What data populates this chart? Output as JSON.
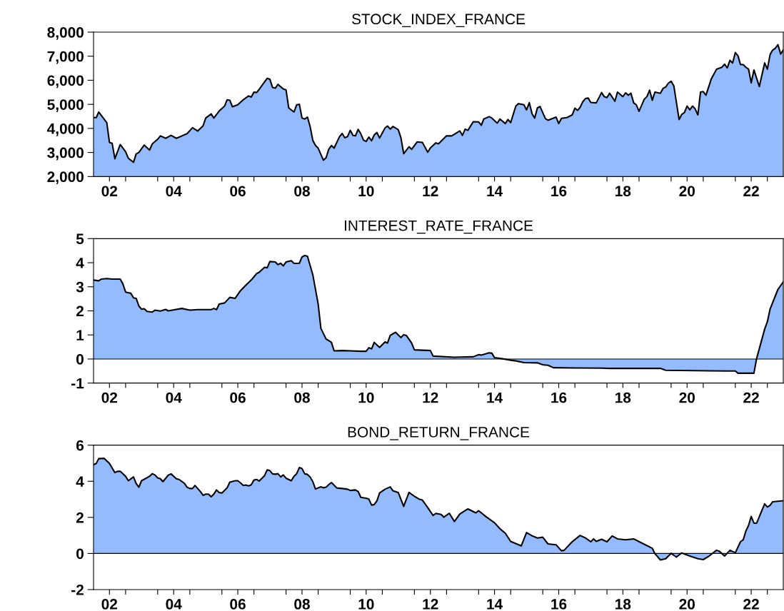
{
  "chart_data": [
    {
      "type": "area",
      "title": "STOCK_INDEX_FRANCE",
      "color": "#94bbfd",
      "x": [
        "2002-01",
        "2002-02",
        "2002-03",
        "2002-06",
        "2002-07",
        "2002-08",
        "2002-09",
        "2002-11",
        "2003-01",
        "2003-02",
        "2003-04",
        "2003-05",
        "2003-06",
        "2003-08",
        "2003-10",
        "2003-11",
        "2004-01",
        "2004-02",
        "2004-04",
        "2004-06",
        "2004-08",
        "2004-12",
        "2005-02",
        "2005-04",
        "2005-06",
        "2005-07",
        "2005-09",
        "2005-10",
        "2005-12",
        "2006-02",
        "2006-03",
        "2006-04",
        "2006-05",
        "2006-07",
        "2006-09",
        "2006-11",
        "2006-12",
        "2007-01",
        "2007-02",
        "2007-03",
        "2007-05",
        "2007-06",
        "2007-07",
        "2007-08",
        "2007-09",
        "2007-10",
        "2007-12",
        "2008-01",
        "2008-02",
        "2008-04",
        "2008-05",
        "2008-06",
        "2008-07",
        "2008-08",
        "2008-09",
        "2008-10",
        "2008-11",
        "2008-12",
        "2009-01",
        "2009-03",
        "2009-04",
        "2009-05",
        "2009-06",
        "2009-07",
        "2009-09",
        "2009-10",
        "2009-11",
        "2009-12",
        "2010-01",
        "2010-02",
        "2010-03",
        "2010-04",
        "2010-05",
        "2010-06",
        "2010-07",
        "2010-08",
        "2010-09",
        "2010-10",
        "2010-11",
        "2010-12",
        "2011-02",
        "2011-03",
        "2011-04",
        "2011-05",
        "2011-07",
        "2011-08",
        "2011-09",
        "2011-11",
        "2011-12",
        "2012-02",
        "2012-04",
        "2012-06",
        "2012-07",
        "2012-09",
        "2012-10",
        "2013-01",
        "2013-03",
        "2013-06",
        "2013-07",
        "2013-08",
        "2013-09",
        "2013-11",
        "2014-01",
        "2014-02",
        "2014-03",
        "2014-05",
        "2014-06",
        "2014-08",
        "2014-09",
        "2014-11",
        "2014-12",
        "2015-01",
        "2015-03",
        "2015-04",
        "2015-06",
        "2015-07",
        "2015-08",
        "2015-09",
        "2015-10",
        "2015-11",
        "2015-12",
        "2016-02",
        "2016-03",
        "2016-06",
        "2016-07",
        "2016-08",
        "2016-10",
        "2016-12",
        "2017-01",
        "2017-02",
        "2017-03",
        "2017-04",
        "2017-05",
        "2017-06",
        "2017-07",
        "2017-09",
        "2017-11",
        "2017-12",
        "2018-01",
        "2018-02",
        "2018-04",
        "2018-05",
        "2018-07",
        "2018-08",
        "2018-09",
        "2018-10",
        "2018-11",
        "2018-12",
        "2019-01",
        "2019-03",
        "2019-04",
        "2019-05",
        "2019-06",
        "2019-07",
        "2019-09",
        "2019-10",
        "2019-11",
        "2019-12",
        "2020-01",
        "2020-02",
        "2020-04",
        "2020-05",
        "2020-06",
        "2020-07",
        "2020-08",
        "2020-09",
        "2020-10",
        "2020-11",
        "2020-12",
        "2021-01",
        "2021-02",
        "2021-04",
        "2021-06",
        "2021-08",
        "2021-09",
        "2021-10",
        "2021-11",
        "2021-12",
        "2022-01",
        "2022-02",
        "2022-03",
        "2022-04",
        "2022-05",
        "2022-06",
        "2022-07",
        "2022-08",
        "2022-10",
        "2022-12",
        "2023-01",
        "2023-02",
        "2023-03",
        "2023-04",
        "2023-05",
        "2023-06",
        "2023-07"
      ],
      "values": [
        4450,
        4450,
        4680,
        4240,
        3420,
        3380,
        2740,
        3330,
        3030,
        2760,
        2590,
        2940,
        3000,
        3310,
        3100,
        3360,
        3550,
        3690,
        3590,
        3710,
        3590,
        3780,
        4030,
        3890,
        4110,
        4430,
        4600,
        4430,
        4720,
        4930,
        5190,
        5170,
        4900,
        4980,
        5190,
        5350,
        5300,
        5510,
        5490,
        5620,
        5930,
        6080,
        6040,
        5700,
        5670,
        5830,
        5640,
        5600,
        4850,
        4680,
        4980,
        5000,
        4430,
        4390,
        4470,
        4080,
        3500,
        3290,
        3180,
        2680,
        2780,
        3130,
        3290,
        3180,
        3660,
        3790,
        3610,
        3660,
        3920,
        3710,
        3690,
        3960,
        3780,
        3510,
        3460,
        3640,
        3490,
        3730,
        3830,
        3600,
        4020,
        4100,
        3970,
        4080,
        3950,
        3610,
        2950,
        3240,
        3130,
        3440,
        3420,
        3010,
        3190,
        3400,
        3360,
        3690,
        3690,
        3900,
        3710,
        3970,
        3920,
        4280,
        4270,
        4130,
        4390,
        4490,
        4430,
        4220,
        4390,
        4200,
        4370,
        4240,
        4930,
        5030,
        4980,
        4770,
        5070,
        4610,
        4430,
        4850,
        4910,
        4400,
        4340,
        4470,
        4200,
        4420,
        4450,
        4560,
        4840,
        4750,
        4870,
        5110,
        5240,
        5260,
        5080,
        5060,
        5490,
        5320,
        5280,
        5460,
        5130,
        5510,
        5320,
        5480,
        5380,
        5460,
        5060,
        4980,
        4710,
        5210,
        5320,
        5590,
        5170,
        5510,
        5460,
        5660,
        5720,
        5880,
        5960,
        5770,
        4370,
        4580,
        4660,
        4930,
        4770,
        4930,
        4810,
        4560,
        5510,
        5530,
        5380,
        6040,
        6460,
        6540,
        6670,
        6510,
        6830,
        6720,
        7150,
        7010,
        6650,
        6650,
        6540,
        6460,
        5890,
        6430,
        5740,
        6720,
        6460,
        7070,
        7250,
        7330,
        7480,
        7090,
        7260
      ],
      "xlim": [
        "2002-01",
        "2023-07"
      ],
      "ylim": [
        2000,
        8000
      ],
      "xticks": [
        {
          "value": "2002-07",
          "label": "02"
        },
        {
          "value": "2003-01",
          "label": null
        },
        {
          "value": "2004-01",
          "label": null
        },
        {
          "value": "2004-07",
          "label": "04"
        },
        {
          "value": "2005-01",
          "label": null
        },
        {
          "value": "2006-01",
          "label": null
        },
        {
          "value": "2006-07",
          "label": "06"
        },
        {
          "value": "2007-01",
          "label": null
        },
        {
          "value": "2008-01",
          "label": null
        },
        {
          "value": "2008-07",
          "label": "08"
        },
        {
          "value": "2009-01",
          "label": null
        },
        {
          "value": "2010-01",
          "label": null
        },
        {
          "value": "2010-07",
          "label": "10"
        },
        {
          "value": "2011-01",
          "label": null
        },
        {
          "value": "2012-01",
          "label": null
        },
        {
          "value": "2012-07",
          "label": "12"
        },
        {
          "value": "2013-01",
          "label": null
        },
        {
          "value": "2014-01",
          "label": null
        },
        {
          "value": "2014-07",
          "label": "14"
        },
        {
          "value": "2015-01",
          "label": null
        },
        {
          "value": "2016-01",
          "label": null
        },
        {
          "value": "2016-07",
          "label": "16"
        },
        {
          "value": "2017-01",
          "label": null
        },
        {
          "value": "2018-01",
          "label": null
        },
        {
          "value": "2018-07",
          "label": "18"
        },
        {
          "value": "2019-01",
          "label": null
        },
        {
          "value": "2020-01",
          "label": null
        },
        {
          "value": "2020-07",
          "label": "20"
        },
        {
          "value": "2021-01",
          "label": null
        },
        {
          "value": "2022-01",
          "label": null
        },
        {
          "value": "2022-07",
          "label": "22"
        },
        {
          "value": "2023-01",
          "label": null
        }
      ],
      "yticks": [
        {
          "value": 2000,
          "label": "2,000"
        },
        {
          "value": 3000,
          "label": "3,000"
        },
        {
          "value": 4000,
          "label": "4,000"
        },
        {
          "value": 5000,
          "label": "5,000"
        },
        {
          "value": 6000,
          "label": "6,000"
        },
        {
          "value": 7000,
          "label": "7,000"
        },
        {
          "value": 8000,
          "label": "8,000"
        }
      ]
    },
    {
      "type": "area",
      "title": "INTEREST_RATE_FRANCE",
      "color": "#94bbfd",
      "x": [
        "2002-01",
        "2002-03",
        "2002-04",
        "2002-06",
        "2002-08",
        "2002-11",
        "2002-12",
        "2003-01",
        "2003-03",
        "2003-04",
        "2003-05",
        "2003-06",
        "2003-07",
        "2003-08",
        "2003-09",
        "2003-11",
        "2003-12",
        "2004-02",
        "2004-04",
        "2004-05",
        "2004-10",
        "2005-01",
        "2005-04",
        "2005-09",
        "2005-10",
        "2005-11",
        "2005-12",
        "2006-02",
        "2006-04",
        "2006-06",
        "2006-08",
        "2006-10",
        "2006-12",
        "2007-02",
        "2007-03",
        "2007-05",
        "2007-06",
        "2007-07",
        "2007-09",
        "2007-10",
        "2007-11",
        "2007-12",
        "2008-01",
        "2008-03",
        "2008-04",
        "2008-06",
        "2008-07",
        "2008-08",
        "2008-09",
        "2008-11",
        "2009-01",
        "2009-02",
        "2009-04",
        "2009-06",
        "2009-07",
        "2009-10",
        "2010-01",
        "2010-05",
        "2010-07",
        "2010-08",
        "2010-09",
        "2010-10",
        "2010-12",
        "2011-02",
        "2011-03",
        "2011-04",
        "2011-06",
        "2011-08",
        "2011-09",
        "2011-10",
        "2011-12",
        "2012-01",
        "2012-07",
        "2012-08",
        "2013-04",
        "2013-06",
        "2013-11",
        "2014-01",
        "2014-02",
        "2014-05",
        "2014-06",
        "2014-07",
        "2014-10",
        "2015-01",
        "2015-03",
        "2015-06",
        "2015-11",
        "2016-01",
        "2016-03",
        "2016-05",
        "2017-01",
        "2017-11",
        "2018-02",
        "2019-09",
        "2019-11",
        "2021-03",
        "2022-01",
        "2022-02",
        "2022-08",
        "2022-09",
        "2022-12",
        "2023-01",
        "2023-02",
        "2023-05",
        "2023-07"
      ],
      "values": [
        3.28,
        3.25,
        3.32,
        3.34,
        3.32,
        3.32,
        3.12,
        2.78,
        2.73,
        2.54,
        2.52,
        2.2,
        2.07,
        2.09,
        1.98,
        1.95,
        2.03,
        1.99,
        2.06,
        2.0,
        2.1,
        2.03,
        2.05,
        2.05,
        2.1,
        2.05,
        2.28,
        2.33,
        2.56,
        2.52,
        2.84,
        3.07,
        3.28,
        3.55,
        3.6,
        3.81,
        3.79,
        4.05,
        4.03,
        3.92,
        3.98,
        3.87,
        4.03,
        4.08,
        3.97,
        3.98,
        4.24,
        4.3,
        4.27,
        3.5,
        2.28,
        1.27,
        0.83,
        0.69,
        0.34,
        0.35,
        0.34,
        0.32,
        0.32,
        0.47,
        0.42,
        0.69,
        0.48,
        0.71,
        0.66,
        0.98,
        1.11,
        0.89,
        1.01,
        0.98,
        0.66,
        0.38,
        0.35,
        0.12,
        0.07,
        0.08,
        0.09,
        0.18,
        0.16,
        0.26,
        0.24,
        0.06,
        0.01,
        -0.05,
        -0.08,
        -0.15,
        -0.16,
        -0.24,
        -0.26,
        -0.36,
        -0.37,
        -0.38,
        -0.39,
        -0.39,
        -0.47,
        -0.49,
        -0.5,
        -0.59,
        -0.59,
        0.03,
        1.24,
        1.55,
        2.08,
        2.89,
        3.2
      ],
      "xlim": [
        "2002-01",
        "2023-07"
      ],
      "ylim": [
        -1,
        5
      ],
      "yticks": [
        -1,
        0,
        1,
        2,
        3,
        4,
        5
      ],
      "ref_lines": [
        {
          "axis": "y",
          "value": 0,
          "label": null,
          "color": "#000000"
        }
      ],
      "xticks": [
        {
          "value": "2002-07",
          "label": "02"
        },
        {
          "value": "2003-01",
          "label": null
        },
        {
          "value": "2004-01",
          "label": null
        },
        {
          "value": "2004-07",
          "label": "04"
        },
        {
          "value": "2005-01",
          "label": null
        },
        {
          "value": "2006-01",
          "label": null
        },
        {
          "value": "2006-07",
          "label": "06"
        },
        {
          "value": "2007-01",
          "label": null
        },
        {
          "value": "2008-01",
          "label": null
        },
        {
          "value": "2008-07",
          "label": "08"
        },
        {
          "value": "2009-01",
          "label": null
        },
        {
          "value": "2010-01",
          "label": null
        },
        {
          "value": "2010-07",
          "label": "10"
        },
        {
          "value": "2011-01",
          "label": null
        },
        {
          "value": "2012-01",
          "label": null
        },
        {
          "value": "2012-07",
          "label": "12"
        },
        {
          "value": "2013-01",
          "label": null
        },
        {
          "value": "2014-01",
          "label": null
        },
        {
          "value": "2014-07",
          "label": "14"
        },
        {
          "value": "2015-01",
          "label": null
        },
        {
          "value": "2016-01",
          "label": null
        },
        {
          "value": "2016-07",
          "label": "16"
        },
        {
          "value": "2017-01",
          "label": null
        },
        {
          "value": "2018-01",
          "label": null
        },
        {
          "value": "2018-07",
          "label": "18"
        },
        {
          "value": "2019-01",
          "label": null
        },
        {
          "value": "2020-01",
          "label": null
        },
        {
          "value": "2020-07",
          "label": "20"
        },
        {
          "value": "2021-01",
          "label": null
        },
        {
          "value": "2022-01",
          "label": null
        },
        {
          "value": "2022-07",
          "label": "22"
        },
        {
          "value": "2023-01",
          "label": null
        }
      ]
    },
    {
      "type": "area",
      "title": "BOND_RETURN_FRANCE",
      "color": "#94bbfd",
      "x": [
        "2002-01",
        "2002-02",
        "2002-03",
        "2002-05",
        "2002-07",
        "2002-09",
        "2002-10",
        "2002-11",
        "2003-01",
        "2003-02",
        "2003-04",
        "2003-05",
        "2003-06",
        "2003-07",
        "2003-09",
        "2003-10",
        "2003-11",
        "2003-12",
        "2004-01",
        "2004-02",
        "2004-03",
        "2004-05",
        "2004-06",
        "2004-08",
        "2004-09",
        "2004-11",
        "2004-12",
        "2005-01",
        "2005-02",
        "2005-03",
        "2005-05",
        "2005-06",
        "2005-07",
        "2005-08",
        "2005-09",
        "2005-10",
        "2005-11",
        "2005-12",
        "2006-01",
        "2006-03",
        "2006-04",
        "2006-06",
        "2006-07",
        "2006-08",
        "2006-09",
        "2006-10",
        "2006-11",
        "2006-12",
        "2007-01",
        "2007-02",
        "2007-03",
        "2007-05",
        "2007-06",
        "2007-07",
        "2007-08",
        "2007-09",
        "2007-10",
        "2007-11",
        "2007-12",
        "2008-01",
        "2008-03",
        "2008-04",
        "2008-05",
        "2008-06",
        "2008-07",
        "2008-08",
        "2008-09",
        "2008-10",
        "2008-11",
        "2008-12",
        "2009-02",
        "2009-03",
        "2009-04",
        "2009-05",
        "2009-06",
        "2009-08",
        "2009-10",
        "2009-12",
        "2010-01",
        "2010-03",
        "2010-04",
        "2010-05",
        "2010-07",
        "2010-08",
        "2010-09",
        "2010-10",
        "2010-11",
        "2010-12",
        "2011-02",
        "2011-04",
        "2011-05",
        "2011-07",
        "2011-09",
        "2011-11",
        "2012-01",
        "2012-03",
        "2012-04",
        "2012-06",
        "2012-08",
        "2012-09",
        "2012-11",
        "2012-12",
        "2013-02",
        "2013-04",
        "2013-06",
        "2013-09",
        "2013-12",
        "2014-01",
        "2014-04",
        "2014-07",
        "2014-09",
        "2014-11",
        "2015-01",
        "2015-05",
        "2015-07",
        "2015-09",
        "2015-11",
        "2016-01",
        "2016-03",
        "2016-06",
        "2016-08",
        "2016-09",
        "2016-12",
        "2017-03",
        "2017-05",
        "2017-07",
        "2017-08",
        "2017-09",
        "2017-11",
        "2018-01",
        "2018-03",
        "2018-05",
        "2018-08",
        "2018-11",
        "2019-02",
        "2019-06",
        "2019-07",
        "2019-09",
        "2019-11",
        "2020-01",
        "2020-03",
        "2020-05",
        "2020-08",
        "2020-11",
        "2021-01",
        "2021-03",
        "2021-06",
        "2021-07",
        "2021-09",
        "2021-11",
        "2022-01",
        "2022-03",
        "2022-04",
        "2022-05",
        "2022-06",
        "2022-07",
        "2022-08",
        "2022-09",
        "2022-11",
        "2022-12",
        "2023-01",
        "2023-02",
        "2023-03",
        "2023-07"
      ],
      "values": [
        4.92,
        4.99,
        5.25,
        5.27,
        4.99,
        4.48,
        4.55,
        4.55,
        4.28,
        4.03,
        4.24,
        3.88,
        3.67,
        4.03,
        4.19,
        4.28,
        4.42,
        4.35,
        4.19,
        4.14,
        3.98,
        4.34,
        4.41,
        4.14,
        4.1,
        3.88,
        3.67,
        3.6,
        3.6,
        3.77,
        3.43,
        3.22,
        3.29,
        3.29,
        3.14,
        3.29,
        3.52,
        3.38,
        3.35,
        3.63,
        3.95,
        4.03,
        4.03,
        3.91,
        3.77,
        3.79,
        3.74,
        3.8,
        4.07,
        4.1,
        4.01,
        4.31,
        4.63,
        4.59,
        4.41,
        4.39,
        4.42,
        4.24,
        4.35,
        4.17,
        4.03,
        4.28,
        4.42,
        4.76,
        4.7,
        4.41,
        4.38,
        4.24,
        3.98,
        3.57,
        3.69,
        3.64,
        3.67,
        3.81,
        3.93,
        3.63,
        3.6,
        3.56,
        3.49,
        3.52,
        3.43,
        3.11,
        3.06,
        3.01,
        2.68,
        2.71,
        2.92,
        3.35,
        3.56,
        3.69,
        3.48,
        3.38,
        2.61,
        3.38,
        3.17,
        3.0,
        2.96,
        2.54,
        2.11,
        2.22,
        2.16,
        2.01,
        2.23,
        1.77,
        2.19,
        2.47,
        2.25,
        2.37,
        2.02,
        1.7,
        1.37,
        1.12,
        0.67,
        0.42,
        1.16,
        0.98,
        0.86,
        0.9,
        0.53,
        0.48,
        0.15,
        0.18,
        0.65,
        1.0,
        0.86,
        0.65,
        0.81,
        0.67,
        0.79,
        0.65,
        0.97,
        0.81,
        0.76,
        0.81,
        0.58,
        0.29,
        -0.01,
        -0.36,
        -0.29,
        0.01,
        -0.2,
        0.03,
        -0.14,
        -0.29,
        -0.34,
        -0.17,
        0.18,
        0.13,
        -0.14,
        0.18,
        0.04,
        0.65,
        0.76,
        1.24,
        1.56,
        2.05,
        1.68,
        1.68,
        2.4,
        2.75,
        2.57,
        2.67,
        2.86,
        2.92
      ],
      "xlim": [
        "2002-01",
        "2023-07"
      ],
      "ylim": [
        -2,
        6
      ],
      "yticks": [
        -2,
        0,
        2,
        4,
        6
      ],
      "ref_lines": [
        {
          "axis": "y",
          "value": 0,
          "label": null,
          "color": "#000000"
        }
      ],
      "xticks": [
        {
          "value": "2002-07",
          "label": "02"
        },
        {
          "value": "2003-01",
          "label": null
        },
        {
          "value": "2004-01",
          "label": null
        },
        {
          "value": "2004-07",
          "label": "04"
        },
        {
          "value": "2005-01",
          "label": null
        },
        {
          "value": "2006-01",
          "label": null
        },
        {
          "value": "2006-07",
          "label": "06"
        },
        {
          "value": "2007-01",
          "label": null
        },
        {
          "value": "2008-01",
          "label": null
        },
        {
          "value": "2008-07",
          "label": "08"
        },
        {
          "value": "2009-01",
          "label": null
        },
        {
          "value": "2010-01",
          "label": null
        },
        {
          "value": "2010-07",
          "label": "10"
        },
        {
          "value": "2011-01",
          "label": null
        },
        {
          "value": "2012-01",
          "label": null
        },
        {
          "value": "2012-07",
          "label": "12"
        },
        {
          "value": "2013-01",
          "label": null
        },
        {
          "value": "2014-01",
          "label": null
        },
        {
          "value": "2014-07",
          "label": "14"
        },
        {
          "value": "2015-01",
          "label": null
        },
        {
          "value": "2016-01",
          "label": null
        },
        {
          "value": "2016-07",
          "label": "16"
        },
        {
          "value": "2017-01",
          "label": null
        },
        {
          "value": "2018-01",
          "label": null
        },
        {
          "value": "2018-07",
          "label": "18"
        },
        {
          "value": "2019-01",
          "label": null
        },
        {
          "value": "2020-01",
          "label": null
        },
        {
          "value": "2020-07",
          "label": "20"
        },
        {
          "value": "2021-01",
          "label": null
        },
        {
          "value": "2022-01",
          "label": null
        },
        {
          "value": "2022-07",
          "label": "22"
        },
        {
          "value": "2023-01",
          "label": null
        }
      ]
    }
  ]
}
